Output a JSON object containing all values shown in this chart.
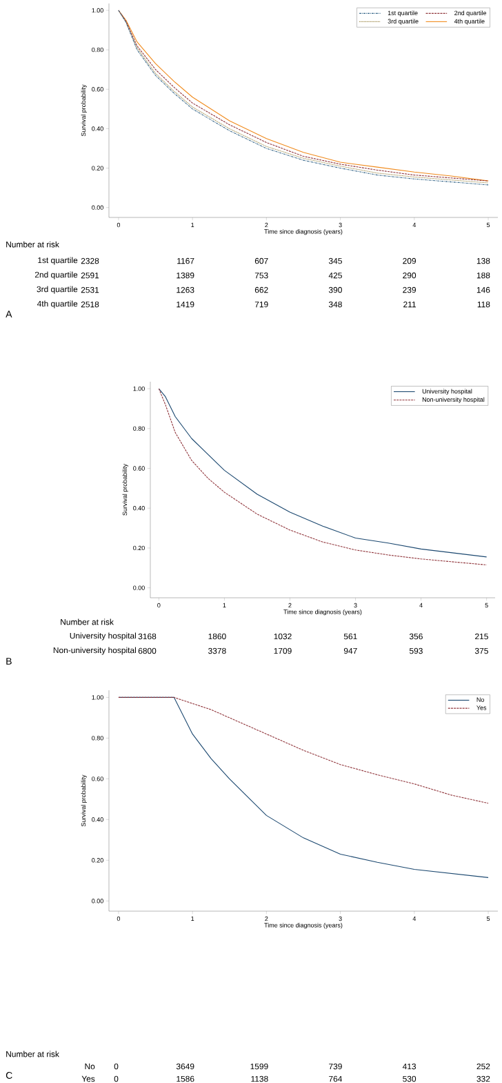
{
  "chart_data": [
    {
      "type": "line",
      "xlabel": "Time since diagnosis (years)",
      "ylabel": "Survival probability",
      "legend": "top right",
      "x": [
        0,
        0.1,
        0.25,
        0.5,
        0.75,
        1,
        1.5,
        2,
        2.5,
        3,
        3.5,
        4,
        4.5,
        5
      ],
      "xlim": [
        -0.13,
        5.13
      ],
      "ylim": [
        -0.05,
        1.035
      ],
      "xticks": [
        0,
        1,
        2,
        3,
        4,
        5
      ],
      "yticks": [
        {
          "value": 0,
          "label": "0.00"
        },
        {
          "value": 0.2,
          "label": "0.20"
        },
        {
          "value": 0.4,
          "label": "0.40"
        },
        {
          "value": 0.6,
          "label": "0.60"
        },
        {
          "value": 0.8,
          "label": "0.80"
        },
        {
          "value": 1,
          "label": "1.00"
        }
      ],
      "series": [
        {
          "name": "1st quartile",
          "color": "#3b6a8c",
          "line_style": "dashdot",
          "values": [
            1.0,
            0.94,
            0.8,
            0.67,
            0.58,
            0.5,
            0.39,
            0.3,
            0.24,
            0.2,
            0.165,
            0.145,
            0.13,
            0.115
          ]
        },
        {
          "name": "2nd quartile",
          "color": "#90353b",
          "line_style": "dashed",
          "values": [
            1.0,
            0.945,
            0.82,
            0.7,
            0.61,
            0.53,
            0.42,
            0.33,
            0.26,
            0.22,
            0.19,
            0.165,
            0.15,
            0.135
          ]
        },
        {
          "name": "3rd quartile",
          "color": "#9c8847",
          "line_style": "dotted",
          "values": [
            1.0,
            0.94,
            0.81,
            0.68,
            0.59,
            0.51,
            0.4,
            0.31,
            0.25,
            0.21,
            0.175,
            0.155,
            0.14,
            0.125
          ]
        },
        {
          "name": "4th quartile",
          "color": "#f08a1c",
          "line_style": "solid",
          "values": [
            1.0,
            0.95,
            0.84,
            0.73,
            0.64,
            0.56,
            0.44,
            0.35,
            0.28,
            0.23,
            0.205,
            0.18,
            0.16,
            0.135
          ]
        }
      ],
      "annotations": [
        "A",
        "Number at risk",
        "1st quartile",
        "2328",
        "1167",
        "607",
        "345",
        "209",
        "138",
        "2nd quartile",
        "2591",
        "1389",
        "753",
        "425",
        "290",
        "188",
        "3rd quartile",
        "2531",
        "1263",
        "662",
        "390",
        "239",
        "146",
        "4th quartile",
        "2518",
        "1419",
        "719",
        "348",
        "211",
        "118"
      ]
    },
    {
      "type": "line",
      "xlabel": "Time since diagnosis (years)",
      "ylabel": "Survival probability",
      "legend": "top right",
      "x": [
        0,
        0.1,
        0.25,
        0.5,
        0.75,
        1,
        1.5,
        2,
        2.5,
        3,
        3.5,
        4,
        4.5,
        5
      ],
      "xlim": [
        -0.13,
        5.13
      ],
      "ylim": [
        -0.05,
        1.035
      ],
      "xticks": [
        0,
        1,
        2,
        3,
        4,
        5
      ],
      "yticks": [
        {
          "value": 0,
          "label": "0.00"
        },
        {
          "value": 0.2,
          "label": "0.20"
        },
        {
          "value": 0.4,
          "label": "0.40"
        },
        {
          "value": 0.6,
          "label": "0.60"
        },
        {
          "value": 0.8,
          "label": "0.80"
        },
        {
          "value": 1,
          "label": "1.00"
        }
      ],
      "series": [
        {
          "name": "University hospital",
          "color": "#1a476f",
          "line_style": "solid",
          "values": [
            1.0,
            0.96,
            0.86,
            0.75,
            0.67,
            0.59,
            0.47,
            0.38,
            0.31,
            0.25,
            0.225,
            0.195,
            0.175,
            0.155
          ]
        },
        {
          "name": "Non-university hospital",
          "color": "#90353b",
          "line_style": "dashed",
          "values": [
            1.0,
            0.92,
            0.78,
            0.64,
            0.55,
            0.48,
            0.37,
            0.29,
            0.23,
            0.19,
            0.165,
            0.145,
            0.13,
            0.115
          ]
        }
      ],
      "annotations": [
        "B",
        "Number at risk",
        "University hospital",
        "3168",
        "1860",
        "1032",
        "561",
        "356",
        "215",
        "Non-university hospital",
        "6800",
        "3378",
        "1709",
        "947",
        "593",
        "375"
      ]
    },
    {
      "type": "line",
      "xlabel": "Time since diagnosis (years)",
      "ylabel": "Survival probability",
      "legend": "top right",
      "x": [
        0,
        0.75,
        1,
        1.25,
        1.5,
        2,
        2.5,
        3,
        3.5,
        4,
        4.5,
        5
      ],
      "xlim": [
        -0.13,
        5.13
      ],
      "ylim": [
        -0.05,
        1.035
      ],
      "xticks": [
        0,
        1,
        2,
        3,
        4,
        5
      ],
      "yticks": [
        {
          "value": 0,
          "label": "0.00"
        },
        {
          "value": 0.2,
          "label": "0.20"
        },
        {
          "value": 0.4,
          "label": "0.40"
        },
        {
          "value": 0.6,
          "label": "0.60"
        },
        {
          "value": 0.8,
          "label": "0.80"
        },
        {
          "value": 1,
          "label": "1.00"
        }
      ],
      "series": [
        {
          "name": "No",
          "color": "#1a476f",
          "line_style": "solid",
          "values": [
            1.0,
            1.0,
            0.82,
            0.7,
            0.6,
            0.42,
            0.31,
            0.23,
            0.19,
            0.155,
            0.135,
            0.115
          ]
        },
        {
          "name": "Yes",
          "color": "#90353b",
          "line_style": "dashed",
          "values": [
            1.0,
            1.0,
            0.97,
            0.94,
            0.9,
            0.82,
            0.74,
            0.67,
            0.62,
            0.575,
            0.52,
            0.48
          ]
        }
      ],
      "annotations": [
        "C",
        "Number at risk",
        "No",
        "0",
        "3649",
        "1599",
        "739",
        "413",
        "252",
        "Yes",
        "0",
        "1586",
        "1138",
        "764",
        "530",
        "332"
      ]
    }
  ]
}
